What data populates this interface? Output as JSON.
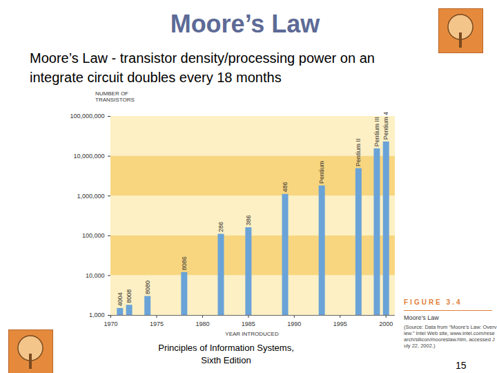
{
  "header": {
    "title": "Moore’s Law",
    "text": "Moore’s Law - transistor density/processing power on an integrate circuit doubles every 18 months"
  },
  "chart_data": {
    "type": "bar",
    "y_label": "NUMBER OF\nTRANSISTORS",
    "x_label": "YEAR INTRODUCED",
    "x": [
      1971,
      1972,
      1974,
      1978,
      1982,
      1985,
      1989,
      1993,
      1997,
      1999,
      2000
    ],
    "values": [
      1500,
      1800,
      3000,
      12000,
      110000,
      160000,
      1100000,
      1800000,
      4900000,
      15500000,
      23000000
    ],
    "bar_labels": [
      "4004",
      "8008",
      "8080",
      "8086",
      "286",
      "386",
      "486",
      "Pentium",
      "Pentium II",
      "Pentium III",
      "Pentium 4"
    ],
    "color": "#6aa3d8",
    "log": "y",
    "grid": true,
    "xlim": [
      1970,
      2001
    ],
    "xticks": [
      1970,
      1975,
      1980,
      1985,
      1990,
      1995,
      2000
    ],
    "ylim": [
      1000,
      100000000
    ],
    "yticks": [
      {
        "value": 1000,
        "label": "1,000"
      },
      {
        "value": 10000,
        "label": "10,000"
      },
      {
        "value": 100000,
        "label": "100,000"
      },
      {
        "value": 1000000,
        "label": "1,000,000"
      },
      {
        "value": 10000000,
        "label": "10,000,000"
      },
      {
        "value": 100000000,
        "label": "100,000,000"
      }
    ]
  },
  "figure": {
    "number": "FIGURE 3.4",
    "caption": "Moore’s Law",
    "source": "(Source: Data from “Moore’s Law: Overview.” Intel Web site, www.intel.com/research/silicon/mooreslaw.htm, accessed July 22, 2002.)"
  },
  "footer": {
    "text": "Principles of Information Systems,\nSixth Edition",
    "page": 15
  }
}
